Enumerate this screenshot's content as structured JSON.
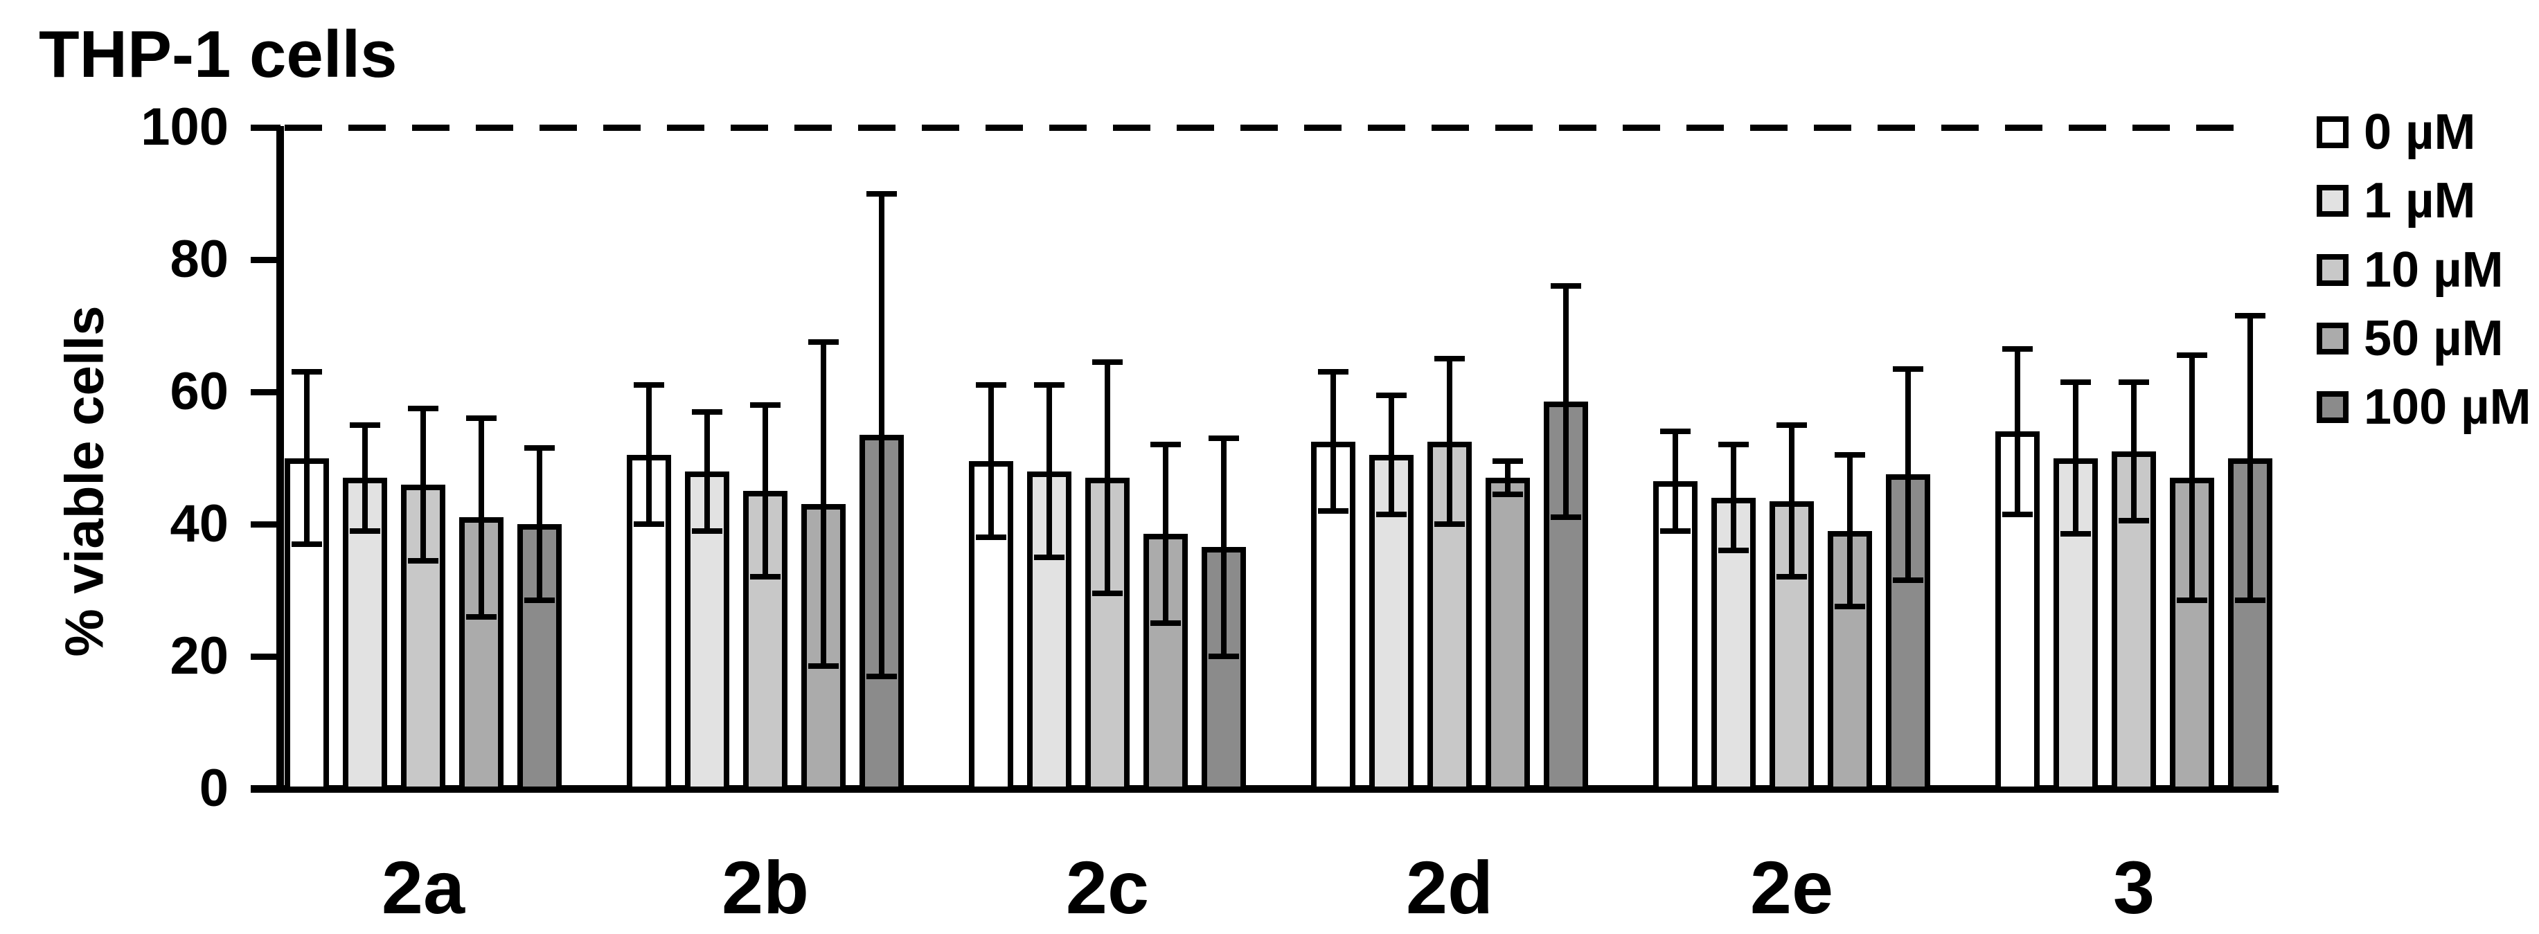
{
  "title": "THP-1 cells",
  "chart_data": {
    "type": "bar",
    "title": "THP-1 cells",
    "xlabel": "",
    "ylabel": "% viable cells",
    "ylim": [
      0,
      100
    ],
    "yticks": [
      0,
      20,
      40,
      60,
      80,
      100
    ],
    "grid": false,
    "legend_position": "top-right",
    "reference_line": {
      "y": 100,
      "style": "dashed",
      "color": "#000000"
    },
    "categories": [
      "2a",
      "2b",
      "2c",
      "2d",
      "2e",
      "3"
    ],
    "error_bars": "symmetric, values in % viable cells",
    "series": [
      {
        "name": "0 µM",
        "color": "#FFFFFF",
        "values": [
          50,
          50.5,
          49.5,
          52.5,
          46.5,
          54
        ],
        "errors": [
          13,
          10.5,
          11.5,
          10.5,
          7.5,
          12.5
        ]
      },
      {
        "name": "1 µM",
        "color": "#E2E2E2",
        "values": [
          47,
          48,
          48,
          50.5,
          44,
          50
        ],
        "errors": [
          8,
          9,
          13,
          9,
          8,
          11.5
        ]
      },
      {
        "name": "10 µM",
        "color": "#C8C8C8",
        "values": [
          46,
          45,
          47,
          52.5,
          43.5,
          51
        ],
        "errors": [
          11.5,
          13,
          17.5,
          12.5,
          11.5,
          10.5
        ]
      },
      {
        "name": "50 µM",
        "color": "#ABABAB",
        "values": [
          41,
          43,
          38.5,
          47,
          39,
          47
        ],
        "errors": [
          15,
          24.5,
          13.5,
          2.5,
          11.5,
          18.5
        ]
      },
      {
        "name": "100 µM",
        "color": "#8B8B8B",
        "values": [
          40,
          53.5,
          36.5,
          58.5,
          47.5,
          50
        ],
        "errors": [
          11.5,
          36.5,
          16.5,
          17.5,
          16,
          21.5
        ]
      }
    ]
  }
}
